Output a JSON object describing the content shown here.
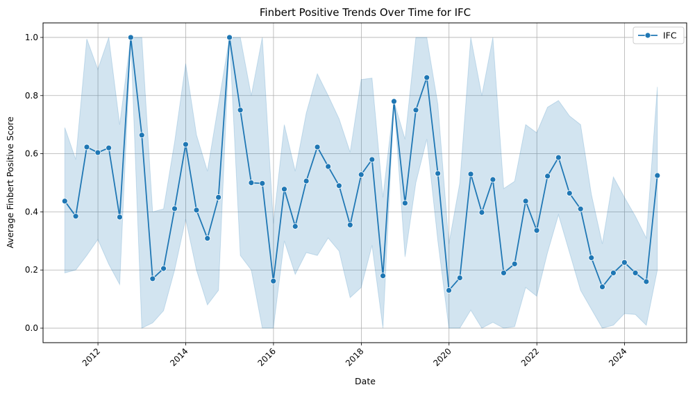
{
  "chart_data": {
    "type": "line",
    "title": "Finbert Positive Trends Over Time for IFC",
    "xlabel": "Date",
    "ylabel": "Average Finbert Positive Score",
    "xlim": [
      "2010-10-01",
      "2025-06-01"
    ],
    "ylim": [
      -0.05,
      1.05
    ],
    "x_ticks": [
      "2012",
      "2014",
      "2016",
      "2018",
      "2020",
      "2022",
      "2024"
    ],
    "y_ticks": [
      "0.0",
      "0.2",
      "0.4",
      "0.6",
      "0.8",
      "1.0"
    ],
    "grid": true,
    "legend": {
      "position": "top-right",
      "entries": [
        "IFC"
      ]
    },
    "colors": {
      "line": "#1f77b4",
      "band": "#1f77b4",
      "grid": "#b0b0b0"
    },
    "series": [
      {
        "name": "IFC",
        "x": [
          "2011-03-31",
          "2011-06-30",
          "2011-09-30",
          "2011-12-31",
          "2012-03-31",
          "2012-06-30",
          "2012-09-30",
          "2012-12-31",
          "2013-03-31",
          "2013-06-30",
          "2013-09-30",
          "2013-12-31",
          "2014-03-31",
          "2014-06-30",
          "2014-09-30",
          "2014-12-31",
          "2015-03-31",
          "2015-06-30",
          "2015-09-30",
          "2015-12-31",
          "2016-03-31",
          "2016-06-30",
          "2016-09-30",
          "2016-12-31",
          "2017-03-31",
          "2017-06-30",
          "2017-09-30",
          "2017-12-31",
          "2018-03-31",
          "2018-06-30",
          "2018-09-30",
          "2018-12-31",
          "2019-03-31",
          "2019-06-30",
          "2019-09-30",
          "2019-12-31",
          "2020-03-31",
          "2020-06-30",
          "2020-09-30",
          "2020-12-31",
          "2021-03-31",
          "2021-06-30",
          "2021-09-30",
          "2021-12-31",
          "2022-03-31",
          "2022-06-30",
          "2022-09-30",
          "2022-12-31",
          "2023-03-31",
          "2023-06-30",
          "2023-09-30",
          "2023-12-31",
          "2024-03-31",
          "2024-06-30",
          "2024-09-30"
        ],
        "y": [
          0.437,
          0.385,
          0.623,
          0.604,
          0.62,
          0.382,
          1.0,
          0.664,
          0.17,
          0.205,
          0.411,
          0.632,
          0.406,
          0.309,
          0.45,
          1.0,
          0.75,
          0.5,
          0.498,
          0.162,
          0.478,
          0.35,
          0.506,
          0.623,
          0.556,
          0.49,
          0.355,
          0.528,
          0.58,
          0.18,
          0.78,
          0.43,
          0.75,
          0.862,
          0.532,
          0.13,
          0.173,
          0.53,
          0.398,
          0.511,
          0.19,
          0.221,
          0.437,
          0.336,
          0.523,
          0.587,
          0.464,
          0.41,
          0.242,
          0.142,
          0.19,
          0.226,
          0.19,
          0.16,
          0.525
        ],
        "ci_lower": [
          0.19,
          0.2,
          0.25,
          0.305,
          0.22,
          0.15,
          null,
          0.0,
          0.018,
          0.06,
          0.2,
          0.375,
          0.2,
          0.08,
          0.13,
          null,
          0.25,
          0.2,
          0.0,
          0.0,
          0.3,
          0.185,
          0.26,
          0.25,
          0.31,
          0.265,
          0.105,
          0.14,
          0.285,
          0.0,
          null,
          0.245,
          0.5,
          0.65,
          0.3,
          0.0,
          0.0,
          0.062,
          0.0,
          0.02,
          0.0,
          0.005,
          0.14,
          0.11,
          0.26,
          0.39,
          0.26,
          0.13,
          0.065,
          0.0,
          0.01,
          0.05,
          0.047,
          0.01,
          0.2
        ],
        "ci_upper": [
          0.69,
          0.58,
          0.995,
          0.89,
          1.0,
          0.7,
          null,
          1.0,
          0.4,
          0.41,
          0.64,
          0.91,
          0.665,
          0.54,
          0.77,
          null,
          1.0,
          0.8,
          1.0,
          0.36,
          0.7,
          0.54,
          0.74,
          0.875,
          0.8,
          0.72,
          0.605,
          0.855,
          0.86,
          0.45,
          1.0,
          0.65,
          1.0,
          1.0,
          0.77,
          0.29,
          0.5,
          1.0,
          0.8,
          1.0,
          0.48,
          0.505,
          0.7,
          0.672,
          0.76,
          0.783,
          0.73,
          0.7,
          0.46,
          0.29,
          0.52,
          0.45,
          0.385,
          0.31,
          0.83
        ]
      }
    ]
  }
}
